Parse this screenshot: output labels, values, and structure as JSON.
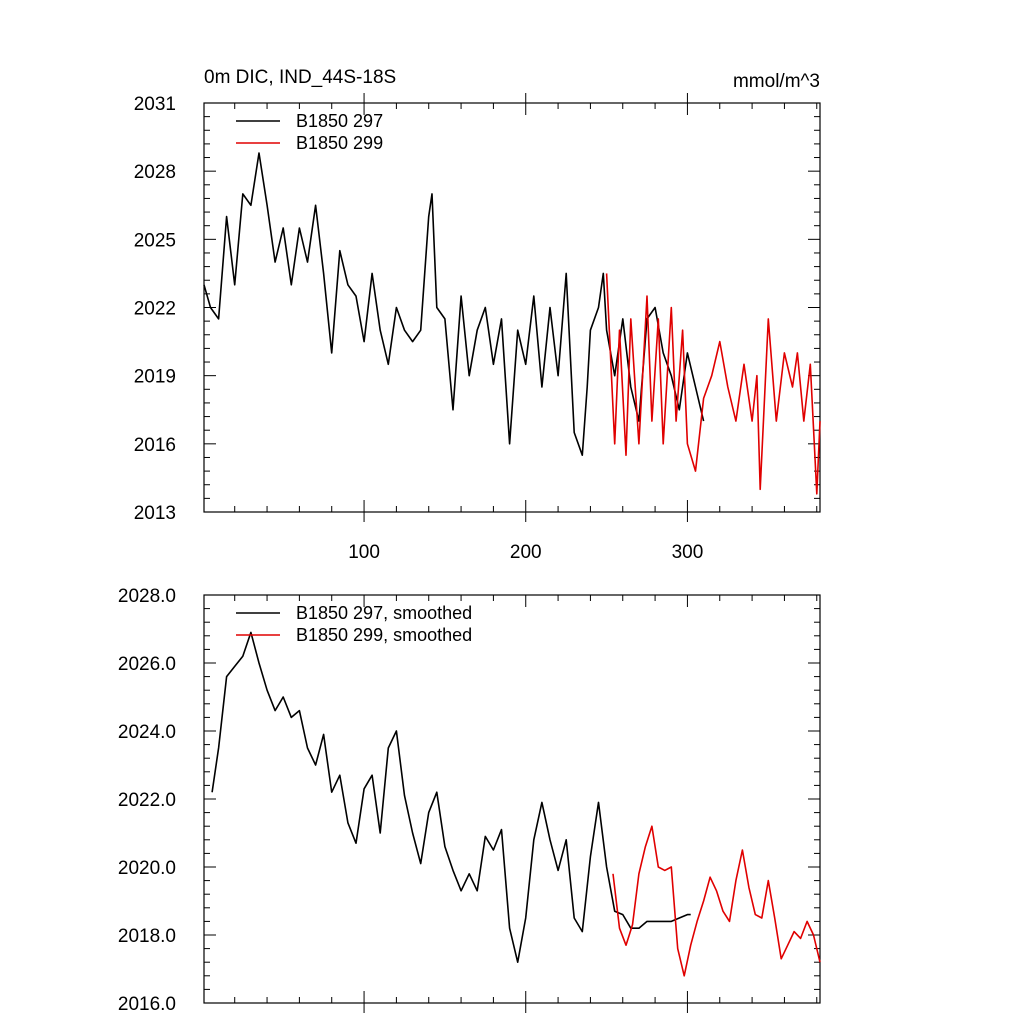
{
  "chart_data": [
    {
      "type": "line",
      "title_left": "0m DIC, IND_44S-18S",
      "title_right": "mmol/m^3",
      "xlabel": "",
      "ylabel": "",
      "xlim": [
        1,
        382
      ],
      "ylim": [
        2013,
        2031
      ],
      "yticks": [
        "2013",
        "2016",
        "2019",
        "2022",
        "2025",
        "2028",
        "2031"
      ],
      "xticks": [
        "100",
        "200",
        "300"
      ],
      "legend": [
        "B1850 297",
        "B1850 299"
      ],
      "series": [
        {
          "name": "B1850 297",
          "color": "#000000",
          "x": [
            1,
            5,
            10,
            15,
            20,
            25,
            30,
            35,
            40,
            45,
            50,
            55,
            60,
            65,
            70,
            75,
            80,
            85,
            90,
            95,
            100,
            105,
            110,
            115,
            120,
            125,
            130,
            135,
            140,
            142,
            145,
            150,
            155,
            160,
            165,
            170,
            175,
            180,
            185,
            190,
            195,
            200,
            205,
            210,
            215,
            220,
            225,
            230,
            235,
            238,
            240,
            245,
            248,
            250,
            255,
            260,
            265,
            270,
            275,
            280,
            285,
            290,
            295,
            300,
            305,
            310
          ],
          "y": [
            2023,
            2022,
            2021.5,
            2026,
            2023,
            2027,
            2026.5,
            2028.8,
            2026.5,
            2024,
            2025.5,
            2023,
            2025.5,
            2024,
            2026.5,
            2023.5,
            2020,
            2024.5,
            2023,
            2022.5,
            2020.5,
            2023.5,
            2021,
            2019.5,
            2022,
            2021,
            2020.5,
            2021,
            2026,
            2027,
            2022,
            2021.5,
            2017.5,
            2022.5,
            2019,
            2021,
            2022,
            2019.5,
            2021.5,
            2016,
            2021,
            2019.5,
            2022.5,
            2018.5,
            2022,
            2019,
            2023.5,
            2016.5,
            2015.5,
            2018.5,
            2021,
            2022,
            2023.5,
            2021,
            2019,
            2021.5,
            2018.5,
            2017,
            2021.5,
            2022,
            2020,
            2019,
            2017.5,
            2020,
            2018.5,
            2017
          ]
        },
        {
          "name": "B1850 299",
          "color": "#e00000",
          "x": [
            250,
            255,
            258,
            262,
            265,
            270,
            275,
            278,
            282,
            285,
            290,
            293,
            297,
            300,
            305,
            310,
            315,
            320,
            325,
            330,
            335,
            340,
            343,
            345,
            350,
            355,
            360,
            365,
            368,
            372,
            376,
            380,
            382
          ],
          "y": [
            2023.5,
            2016,
            2021,
            2015.5,
            2021.5,
            2016,
            2022.5,
            2017,
            2021.5,
            2016,
            2022,
            2017,
            2021,
            2016,
            2014.8,
            2018,
            2019,
            2020.5,
            2018.5,
            2017,
            2019.5,
            2017,
            2019,
            2014,
            2021.5,
            2017,
            2020,
            2018.5,
            2020,
            2017,
            2019.5,
            2013.8,
            2017
          ]
        }
      ]
    },
    {
      "type": "line",
      "title_left": "",
      "title_right": "",
      "xlabel": "",
      "ylabel": "",
      "xlim": [
        1,
        382
      ],
      "ylim": [
        2016.0,
        2028.0
      ],
      "yticks": [
        "2016.0",
        "2018.0",
        "2020.0",
        "2022.0",
        "2024.0",
        "2026.0",
        "2028.0"
      ],
      "legend": [
        "B1850 297, smoothed",
        "B1850 299, smoothed"
      ],
      "series": [
        {
          "name": "B1850 297, smoothed",
          "color": "#000000",
          "x": [
            6,
            10,
            15,
            20,
            25,
            30,
            35,
            40,
            45,
            50,
            55,
            60,
            65,
            70,
            75,
            80,
            85,
            90,
            95,
            100,
            105,
            110,
            115,
            120,
            125,
            130,
            135,
            140,
            145,
            150,
            155,
            160,
            165,
            170,
            175,
            180,
            185,
            190,
            195,
            200,
            205,
            210,
            215,
            220,
            225,
            230,
            235,
            240,
            245,
            250,
            255,
            260,
            265,
            270,
            275,
            280,
            285,
            290,
            295,
            300,
            302
          ],
          "y": [
            2022.2,
            2023.5,
            2025.6,
            2025.9,
            2026.2,
            2026.9,
            2026.0,
            2025.2,
            2024.6,
            2025.0,
            2024.4,
            2024.6,
            2023.5,
            2023.0,
            2023.9,
            2022.2,
            2022.7,
            2021.3,
            2020.7,
            2022.3,
            2022.7,
            2021.0,
            2023.5,
            2024.0,
            2022.1,
            2021.0,
            2020.1,
            2021.6,
            2022.2,
            2020.6,
            2019.9,
            2019.3,
            2019.8,
            2019.3,
            2020.9,
            2020.5,
            2021.1,
            2018.2,
            2017.2,
            2018.5,
            2020.8,
            2021.9,
            2020.8,
            2019.9,
            2020.8,
            2018.5,
            2018.1,
            2020.3,
            2021.9,
            2020.0,
            2018.7,
            2018.6,
            2018.2,
            2018.2,
            2018.4,
            2018.4,
            2018.4,
            2018.4,
            2018.5,
            2018.6,
            2018.6
          ]
        },
        {
          "name": "B1850 299, smoothed",
          "color": "#e00000",
          "x": [
            254,
            258,
            262,
            266,
            270,
            274,
            278,
            282,
            286,
            290,
            294,
            298,
            302,
            306,
            310,
            314,
            318,
            322,
            326,
            330,
            334,
            338,
            342,
            346,
            350,
            354,
            358,
            362,
            366,
            370,
            374,
            378,
            382
          ],
          "y": [
            2019.8,
            2018.2,
            2017.7,
            2018.3,
            2019.8,
            2020.6,
            2021.2,
            2020.0,
            2019.9,
            2020.0,
            2017.6,
            2016.8,
            2017.7,
            2018.4,
            2019.0,
            2019.7,
            2019.3,
            2018.7,
            2018.4,
            2019.6,
            2020.5,
            2019.4,
            2018.6,
            2018.5,
            2019.6,
            2018.5,
            2017.3,
            2017.7,
            2018.1,
            2017.9,
            2018.4,
            2018.0,
            2017.2
          ]
        }
      ]
    }
  ]
}
